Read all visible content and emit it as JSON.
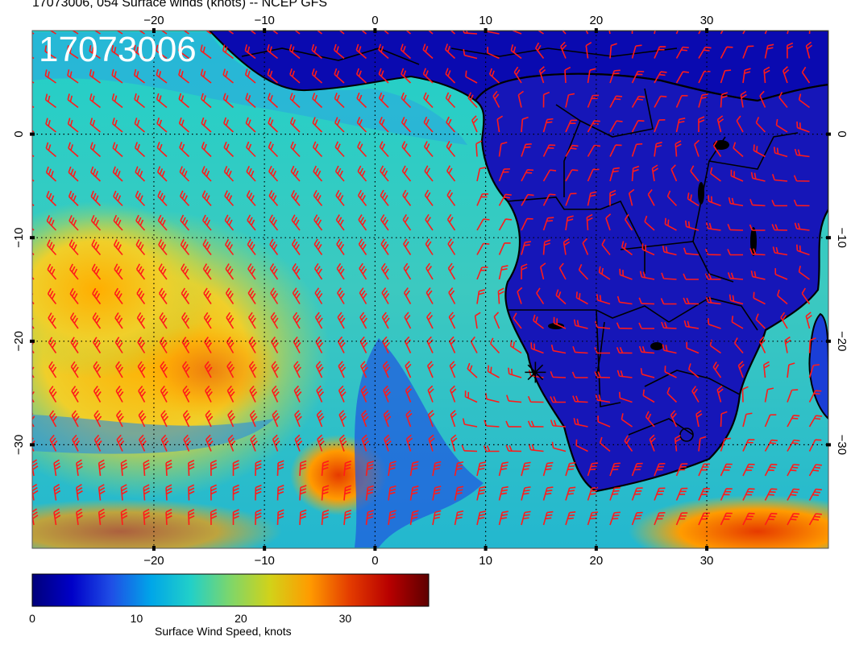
{
  "title": "17073006, 054 Surface winds (knots) -- NCEP GFS",
  "timestamp_label": "17073006",
  "map": {
    "lon_range": [
      -31,
      41
    ],
    "lat_range": [
      -40,
      10
    ],
    "lon_ticks": [
      -20,
      -10,
      0,
      10,
      20,
      30
    ],
    "lat_ticks": [
      0,
      -10,
      -20,
      -30
    ],
    "lon_tick_labels": [
      "−20",
      "−10",
      "0",
      "10",
      "20",
      "30"
    ],
    "lat_tick_labels": [
      "0",
      "−10",
      "−20",
      "−30"
    ],
    "barb_color": "#ff1a1a",
    "marker": {
      "lon": 14.5,
      "lat": -23
    }
  },
  "colorbar": {
    "title": "Surface Wind Speed, knots",
    "min": 0,
    "max": 38,
    "tick_values": [
      0,
      10,
      20,
      30
    ],
    "tick_labels": [
      "0",
      "10",
      "20",
      "30"
    ],
    "colors": [
      "#00007a",
      "#0000c8",
      "#1f4fe6",
      "#00a6e8",
      "#22d0c8",
      "#7ed66a",
      "#d2d219",
      "#ff9b00",
      "#e43c00",
      "#b80000",
      "#5e0000"
    ]
  }
}
